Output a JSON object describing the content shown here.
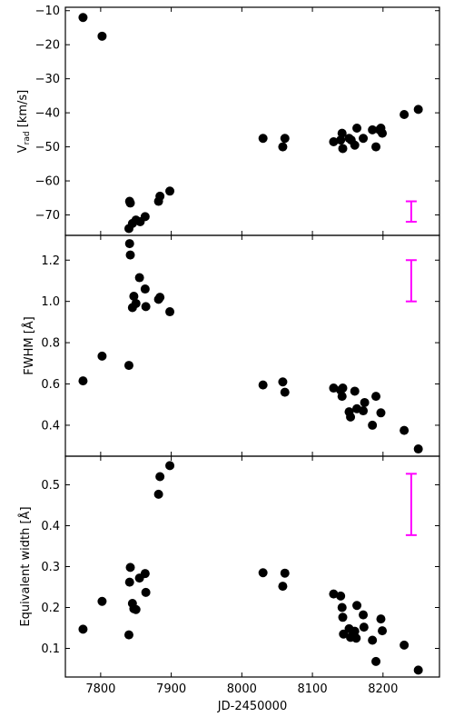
{
  "chart_data": [
    {
      "type": "scatter",
      "ylabel_main": "V",
      "ylabel_sub": "rad",
      "ylabel_unit": " [km/s]",
      "xlim": [
        7750,
        8280
      ],
      "ylim": [
        -76,
        -9
      ],
      "yticks": [
        -70,
        -60,
        -50,
        -40,
        -30,
        -20,
        -10
      ],
      "marker_color": "#000000",
      "points": [
        {
          "x": 7775,
          "y": -12
        },
        {
          "x": 7802,
          "y": -17.5
        },
        {
          "x": 7840,
          "y": -74
        },
        {
          "x": 7841,
          "y": -66
        },
        {
          "x": 7842,
          "y": -66.5
        },
        {
          "x": 7845,
          "y": -72.5
        },
        {
          "x": 7850,
          "y": -71.5
        },
        {
          "x": 7856,
          "y": -72
        },
        {
          "x": 7863,
          "y": -70.5
        },
        {
          "x": 7882,
          "y": -66
        },
        {
          "x": 7884,
          "y": -64.5
        },
        {
          "x": 7898,
          "y": -63
        },
        {
          "x": 8030,
          "y": -47.5
        },
        {
          "x": 8058,
          "y": -50
        },
        {
          "x": 8061,
          "y": -47.5
        },
        {
          "x": 8130,
          "y": -48.5
        },
        {
          "x": 8140,
          "y": -48
        },
        {
          "x": 8142,
          "y": -46
        },
        {
          "x": 8143,
          "y": -50.5
        },
        {
          "x": 8152,
          "y": -47.5
        },
        {
          "x": 8155,
          "y": -48
        },
        {
          "x": 8160,
          "y": -49.5
        },
        {
          "x": 8163,
          "y": -44.5
        },
        {
          "x": 8172,
          "y": -47.5
        },
        {
          "x": 8185,
          "y": -45
        },
        {
          "x": 8190,
          "y": -50
        },
        {
          "x": 8195,
          "y": -45
        },
        {
          "x": 8197,
          "y": -44.5
        },
        {
          "x": 8199,
          "y": -46
        },
        {
          "x": 8230,
          "y": -40.5
        },
        {
          "x": 8250,
          "y": -39
        }
      ],
      "errorbar": {
        "x": 8240,
        "y_low": -72,
        "y_high": -66,
        "color": "#ff00ff"
      }
    },
    {
      "type": "scatter",
      "ylabel": "FWHM [Å]",
      "xlim": [
        7750,
        8280
      ],
      "ylim": [
        0.25,
        1.32
      ],
      "yticks": [
        "0.4",
        "0.6",
        "0.8",
        "1.0",
        "1.2"
      ],
      "marker_color": "#000000",
      "points": [
        {
          "x": 7775,
          "y": 0.615
        },
        {
          "x": 7802,
          "y": 0.735
        },
        {
          "x": 7840,
          "y": 0.69
        },
        {
          "x": 7841,
          "y": 1.28
        },
        {
          "x": 7842,
          "y": 1.225
        },
        {
          "x": 7845,
          "y": 0.97
        },
        {
          "x": 7847,
          "y": 1.025
        },
        {
          "x": 7850,
          "y": 0.99
        },
        {
          "x": 7855,
          "y": 1.115
        },
        {
          "x": 7863,
          "y": 1.06
        },
        {
          "x": 7864,
          "y": 0.975
        },
        {
          "x": 7882,
          "y": 1.01
        },
        {
          "x": 7884,
          "y": 1.02
        },
        {
          "x": 7898,
          "y": 0.95
        },
        {
          "x": 8030,
          "y": 0.595
        },
        {
          "x": 8058,
          "y": 0.61
        },
        {
          "x": 8061,
          "y": 0.56
        },
        {
          "x": 8130,
          "y": 0.58
        },
        {
          "x": 8140,
          "y": 0.57
        },
        {
          "x": 8142,
          "y": 0.54
        },
        {
          "x": 8143,
          "y": 0.58
        },
        {
          "x": 8152,
          "y": 0.465
        },
        {
          "x": 8154,
          "y": 0.44
        },
        {
          "x": 8160,
          "y": 0.565
        },
        {
          "x": 8163,
          "y": 0.48
        },
        {
          "x": 8172,
          "y": 0.47
        },
        {
          "x": 8174,
          "y": 0.51
        },
        {
          "x": 8185,
          "y": 0.4
        },
        {
          "x": 8190,
          "y": 0.54
        },
        {
          "x": 8197,
          "y": 0.46
        },
        {
          "x": 8230,
          "y": 0.375
        },
        {
          "x": 8250,
          "y": 0.285
        }
      ],
      "errorbar": {
        "x": 8240,
        "y_low": 1.0,
        "y_high": 1.2,
        "color": "#ff00ff"
      }
    },
    {
      "type": "scatter",
      "ylabel": "Equivalent width [Å]",
      "xlabel": "JD-2450000",
      "xlim": [
        7750,
        8280
      ],
      "ylim": [
        0.03,
        0.57
      ],
      "yticks": [
        "0.1",
        "0.2",
        "0.3",
        "0.4",
        "0.5"
      ],
      "xticks": [
        7800,
        7900,
        8000,
        8100,
        8200
      ],
      "marker_color": "#000000",
      "points": [
        {
          "x": 7775,
          "y": 0.147
        },
        {
          "x": 7802,
          "y": 0.215
        },
        {
          "x": 7840,
          "y": 0.133
        },
        {
          "x": 7841,
          "y": 0.262
        },
        {
          "x": 7842,
          "y": 0.298
        },
        {
          "x": 7845,
          "y": 0.21
        },
        {
          "x": 7847,
          "y": 0.197
        },
        {
          "x": 7850,
          "y": 0.195
        },
        {
          "x": 7855,
          "y": 0.272
        },
        {
          "x": 7863,
          "y": 0.283
        },
        {
          "x": 7864,
          "y": 0.237
        },
        {
          "x": 7882,
          "y": 0.477
        },
        {
          "x": 7884,
          "y": 0.52
        },
        {
          "x": 7898,
          "y": 0.547
        },
        {
          "x": 8030,
          "y": 0.285
        },
        {
          "x": 8058,
          "y": 0.252
        },
        {
          "x": 8061,
          "y": 0.284
        },
        {
          "x": 8130,
          "y": 0.233
        },
        {
          "x": 8140,
          "y": 0.228
        },
        {
          "x": 8142,
          "y": 0.2
        },
        {
          "x": 8143,
          "y": 0.176
        },
        {
          "x": 8144,
          "y": 0.135
        },
        {
          "x": 8152,
          "y": 0.148
        },
        {
          "x": 8154,
          "y": 0.127
        },
        {
          "x": 8160,
          "y": 0.142
        },
        {
          "x": 8162,
          "y": 0.125
        },
        {
          "x": 8163,
          "y": 0.205
        },
        {
          "x": 8172,
          "y": 0.182
        },
        {
          "x": 8173,
          "y": 0.152
        },
        {
          "x": 8185,
          "y": 0.12
        },
        {
          "x": 8190,
          "y": 0.068
        },
        {
          "x": 8197,
          "y": 0.172
        },
        {
          "x": 8199,
          "y": 0.143
        },
        {
          "x": 8230,
          "y": 0.108
        },
        {
          "x": 8250,
          "y": 0.047
        }
      ],
      "errorbar": {
        "x": 8240,
        "y_low": 0.377,
        "y_high": 0.527,
        "color": "#ff00ff"
      }
    }
  ]
}
